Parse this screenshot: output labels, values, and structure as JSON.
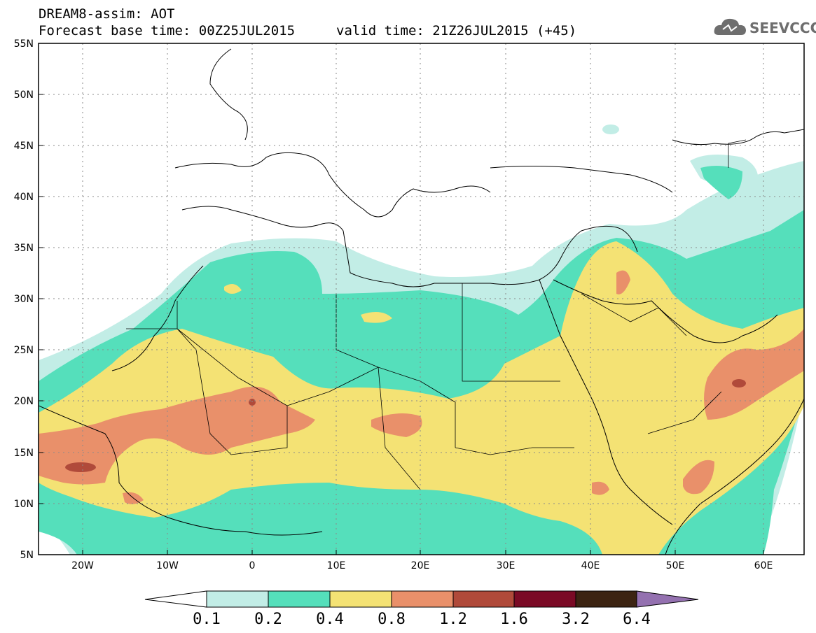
{
  "header": {
    "line1": "DREAM8-assim: AOT",
    "line2": "Forecast base time: 00Z25JUL2015",
    "line3": "valid time: 21Z26JUL2015 (+45)"
  },
  "logo": {
    "text": "SEEVCCC",
    "icon": "cloud-icon"
  },
  "map": {
    "lat_labels": [
      "55N",
      "50N",
      "45N",
      "40N",
      "35N",
      "30N",
      "25N",
      "20N",
      "15N",
      "10N",
      "5N"
    ],
    "lon_labels": [
      "20W",
      "10W",
      "0",
      "10E",
      "20E",
      "30E",
      "40E",
      "50E",
      "60E"
    ],
    "lat_range": [
      5,
      55
    ],
    "lon_range": [
      -25,
      65
    ]
  },
  "colorbar": {
    "labels": [
      "0.1",
      "0.2",
      "0.4",
      "0.8",
      "1.2",
      "1.6",
      "3.2",
      "6.4"
    ],
    "colors": [
      "#ffffff",
      "#c2ede6",
      "#55dfbb",
      "#f4e274",
      "#e9906a",
      "#b04a3a",
      "#7a0a25",
      "#3c2412",
      "#9471b0"
    ]
  },
  "palette": {
    "c01": "#c2ede6",
    "c02": "#55dfbb",
    "c04": "#f4e274",
    "c08": "#e9906a",
    "c12": "#b04a3a",
    "c16": "#7a0a25"
  }
}
